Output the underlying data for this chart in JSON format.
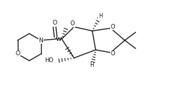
{
  "bg_color": "#ffffff",
  "line_color": "#1a1a1a",
  "lw": 1.0,
  "figsize": [
    2.5,
    1.45
  ],
  "dpi": 100,
  "xlim": [
    0,
    250
  ],
  "ylim": [
    0,
    145
  ]
}
